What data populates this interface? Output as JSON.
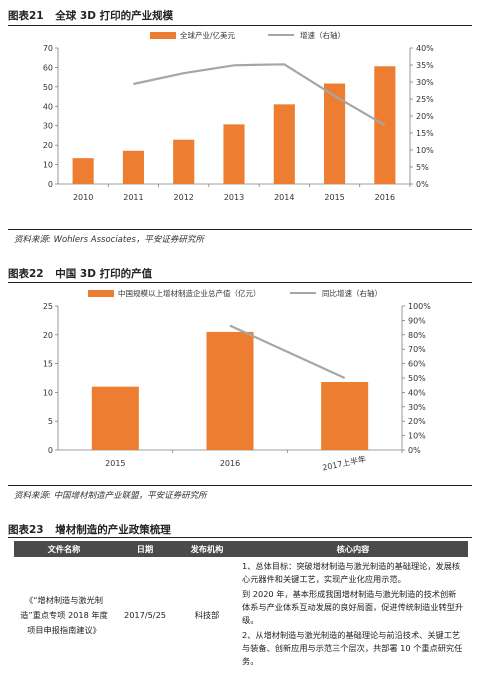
{
  "fig21": {
    "number": "图表21",
    "title": "全球 3D 打印的产业规模",
    "source": "资料来源: Wohlers Associates，平安证券研究所"
  },
  "fig22": {
    "number": "图表22",
    "title": "中国 3D 打印的产值",
    "source": "资料来源: 中国增材制造产业联盟，平安证券研究所"
  },
  "fig23": {
    "number": "图表23",
    "title": "增材制造的产业政策梳理",
    "headers": [
      "文件名称",
      "日期",
      "发布机构",
      "核心内容"
    ],
    "rows": [
      {
        "name": "《“增材制造与激光制造”重点专项 2018 年度项目申报指南建议》",
        "date": "2017/5/25",
        "org": "科技部",
        "content": [
          "1、总体目标：突破增材制造与激光制造的基础理论，发展核心元器件和关键工艺，实现产业化应用示范。",
          "到 2020 年，基本形成我国增材制造与激光制造的技术创新体系与产业体系互动发展的良好局面，促进传统制造业转型升级。",
          "2、从增材制造与激光制造的基础理论与前沿技术、关键工艺与装备、创新应用与示范三个层次，共部署 10 个重点研究任务。"
        ]
      }
    ]
  },
  "chart_data": [
    {
      "type": "bar",
      "categories": [
        "2010",
        "2011",
        "2012",
        "2013",
        "2014",
        "2015",
        "2016"
      ],
      "series": [
        {
          "name": "全球产业/亿美元",
          "type": "bar",
          "axis": "left",
          "color": "#ed7d31",
          "values": [
            13.3,
            17.1,
            22.8,
            30.7,
            41.0,
            51.7,
            60.6
          ]
        },
        {
          "name": "增速（右轴）",
          "type": "line",
          "axis": "right",
          "color": "#a6a6a6",
          "values": [
            null,
            29.4,
            32.6,
            34.9,
            35.2,
            25.9,
            17.3
          ]
        }
      ],
      "ylim": [
        0,
        70
      ],
      "yticks": [
        0,
        10,
        20,
        30,
        40,
        50,
        60,
        70
      ],
      "y2lim": [
        0,
        40
      ],
      "y2ticks": [
        "0%",
        "5%",
        "10%",
        "15%",
        "20%",
        "25%",
        "30%",
        "35%",
        "40%"
      ],
      "legend_position": "top"
    },
    {
      "type": "bar",
      "categories": [
        "2015",
        "2016",
        "2017上半年"
      ],
      "series": [
        {
          "name": "中国规模以上增材制造企业总产值（亿元）",
          "type": "bar",
          "axis": "left",
          "color": "#ed7d31",
          "values": [
            11.0,
            20.5,
            11.8
          ]
        },
        {
          "name": "同比增速（右轴）",
          "type": "line",
          "axis": "right",
          "color": "#a6a6a6",
          "values": [
            null,
            86.4,
            50.0
          ]
        }
      ],
      "ylim": [
        0,
        25
      ],
      "yticks": [
        0,
        5,
        10,
        15,
        20,
        25
      ],
      "y2lim": [
        0,
        100
      ],
      "y2ticks": [
        "0%",
        "10%",
        "20%",
        "30%",
        "40%",
        "50%",
        "60%",
        "70%",
        "80%",
        "90%",
        "100%"
      ],
      "legend_position": "top"
    }
  ]
}
